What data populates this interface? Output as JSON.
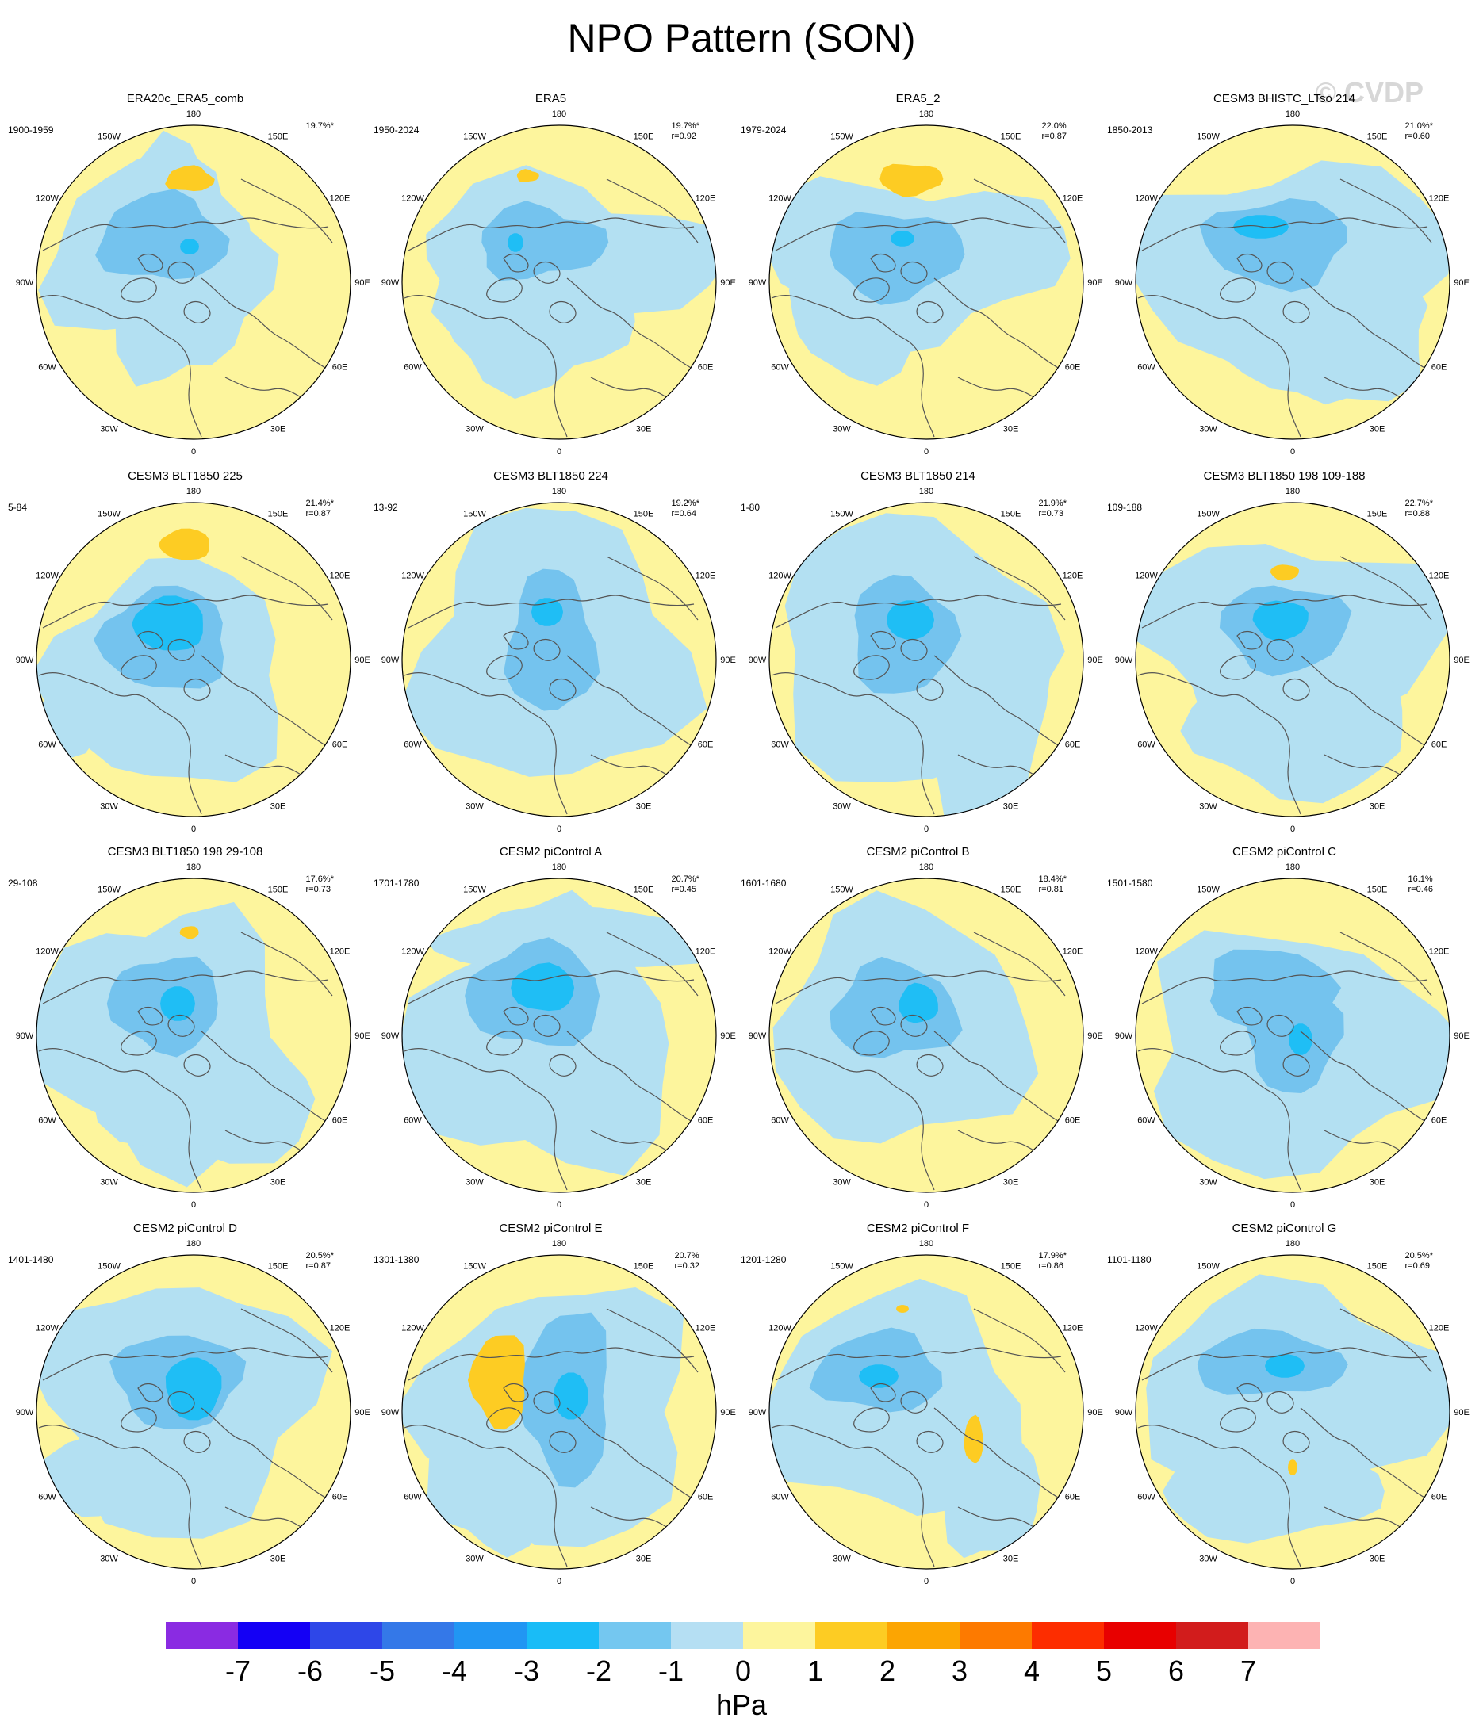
{
  "title": "NPO Pattern (SON)",
  "watermark": "© CVDP",
  "lon_labels": [
    "180",
    "150E",
    "120E",
    "90E",
    "60E",
    "30E",
    "0",
    "30W",
    "60W",
    "90W",
    "120W",
    "150W"
  ],
  "colors": {
    "neg_weak": "#b3e0f2",
    "neg_mid": "#74c3ee",
    "neg_strong": "#1fbef5",
    "pos_weak": "#fdf59d",
    "pos_mid": "#fdcc23",
    "coast": "#555555"
  },
  "panels": [
    {
      "title": "ERA20c_ERA5_comb",
      "years": "1900-1959",
      "pct": "19.7%*",
      "r": ""
    },
    {
      "title": "ERA5",
      "years": "1950-2024",
      "pct": "19.7%*",
      "r": "r=0.92"
    },
    {
      "title": "ERA5_2",
      "years": "1979-2024",
      "pct": "22.0%",
      "r": "r=0.87"
    },
    {
      "title": "CESM3 BHISTC_LTso 214",
      "years": "1850-2013",
      "pct": "21.0%*",
      "r": "r=0.60"
    },
    {
      "title": "CESM3 BLT1850 225",
      "years": "5-84",
      "pct": "21.4%*",
      "r": "r=0.87"
    },
    {
      "title": "CESM3 BLT1850 224",
      "years": "13-92",
      "pct": "19.2%*",
      "r": "r=0.64"
    },
    {
      "title": "CESM3 BLT1850 214",
      "years": "1-80",
      "pct": "21.9%*",
      "r": "r=0.73"
    },
    {
      "title": "CESM3 BLT1850 198 109-188",
      "years": "109-188",
      "pct": "22.7%*",
      "r": "r=0.88"
    },
    {
      "title": "CESM3 BLT1850 198 29-108",
      "years": "29-108",
      "pct": "17.6%*",
      "r": "r=0.73"
    },
    {
      "title": "CESM2 piControl A",
      "years": "1701-1780",
      "pct": "20.7%*",
      "r": "r=0.45"
    },
    {
      "title": "CESM2 piControl B",
      "years": "1601-1680",
      "pct": "18.4%*",
      "r": "r=0.81"
    },
    {
      "title": "CESM2 piControl C",
      "years": "1501-1580",
      "pct": "16.1%",
      "r": "r=0.46"
    },
    {
      "title": "CESM2 piControl D",
      "years": "1401-1480",
      "pct": "20.5%*",
      "r": "r=0.87"
    },
    {
      "title": "CESM2 piControl E",
      "years": "1301-1380",
      "pct": "20.7%",
      "r": "r=0.32"
    },
    {
      "title": "CESM2 piControl F",
      "years": "1201-1280",
      "pct": "17.9%*",
      "r": "r=0.86"
    },
    {
      "title": "CESM2 piControl G",
      "years": "1101-1180",
      "pct": "20.5%*",
      "r": "r=0.69"
    }
  ],
  "colorbar": {
    "colors": [
      "#8a2be2",
      "#1400f5",
      "#2e47e8",
      "#3478e8",
      "#2196f3",
      "#19bcf7",
      "#74c7f0",
      "#b5dff3",
      "#fdf59d",
      "#fdcc23",
      "#fca502",
      "#fd7a00",
      "#fd2d00",
      "#e80000",
      "#d21c1c",
      "#fdb3b3"
    ],
    "ticks": [
      "-7",
      "-6",
      "-5",
      "-4",
      "-3",
      "-2",
      "-1",
      "0",
      "1",
      "2",
      "3",
      "4",
      "5",
      "6",
      "7"
    ],
    "unit": "hPa"
  }
}
